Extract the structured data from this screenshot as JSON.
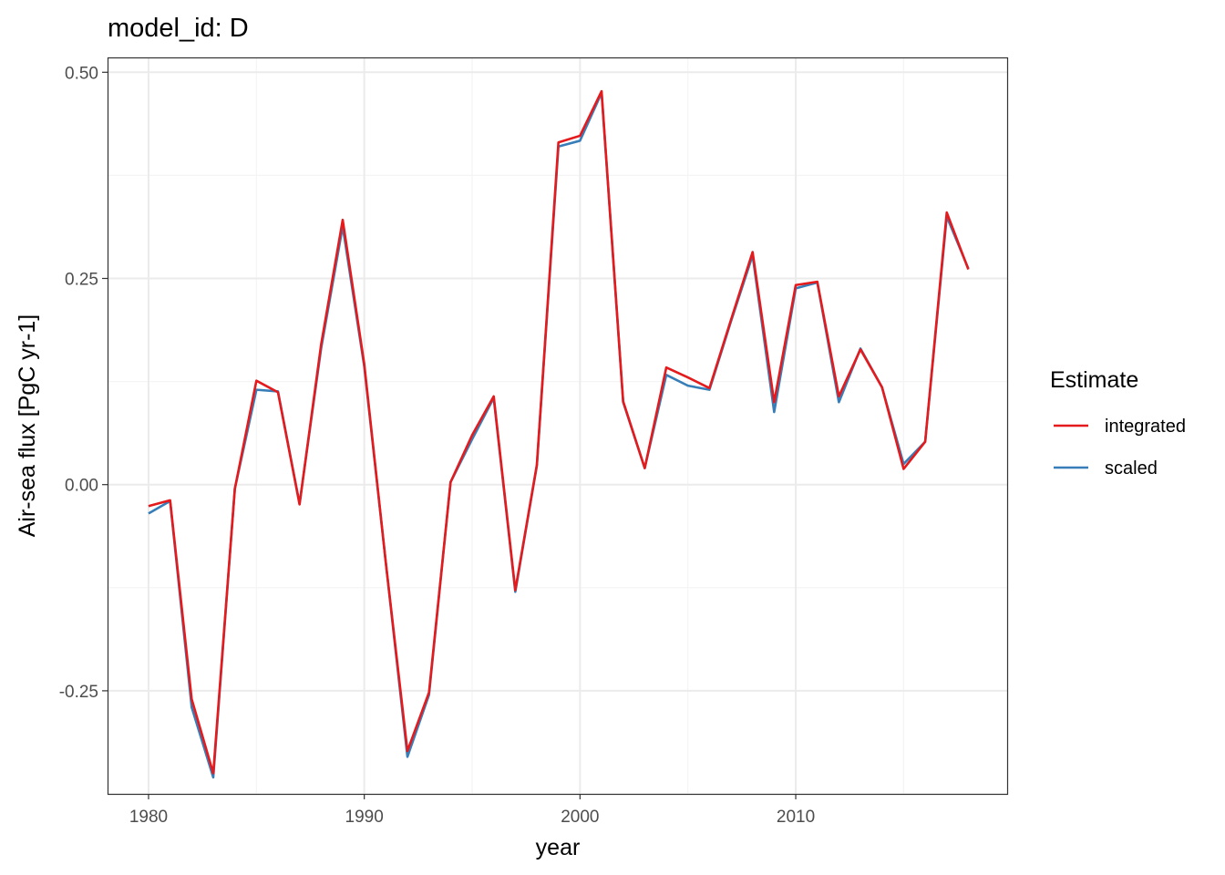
{
  "chart_data": {
    "type": "line",
    "title": "model_id: D",
    "xlabel": "year",
    "ylabel": "Air-sea flux [PgC yr-1]",
    "xlim": [
      1978.1,
      2019.8
    ],
    "ylim": [
      -0.375,
      0.518
    ],
    "x_ticks": [
      1980,
      1990,
      2000,
      2010
    ],
    "x_tick_labels": [
      "1980",
      "1990",
      "2000",
      "2010"
    ],
    "y_ticks": [
      0.5,
      0.25,
      0.0,
      -0.25
    ],
    "y_tick_labels": [
      "0.50",
      "0.25",
      "0.00",
      "-0.25"
    ],
    "grid": true,
    "legend": {
      "title": "Estimate",
      "position": "right",
      "entries": [
        "integrated",
        "scaled"
      ]
    },
    "x": [
      1980,
      1981,
      1982,
      1983,
      1984,
      1985,
      1986,
      1987,
      1988,
      1989,
      1990,
      1991,
      1992,
      1993,
      1994,
      1995,
      1996,
      1997,
      1998,
      1999,
      2000,
      2001,
      2002,
      2003,
      2004,
      2005,
      2006,
      2007,
      2008,
      2009,
      2010,
      2011,
      2012,
      2013,
      2014,
      2015,
      2016,
      2017,
      2018
    ],
    "series": [
      {
        "name": "scaled",
        "color": "#377eb8",
        "values": [
          -0.035,
          -0.02,
          -0.27,
          -0.355,
          -0.005,
          0.115,
          0.113,
          -0.023,
          0.165,
          0.313,
          0.143,
          -0.095,
          -0.33,
          -0.255,
          0.003,
          0.055,
          0.105,
          -0.13,
          0.023,
          0.41,
          0.417,
          0.475,
          0.1,
          0.02,
          0.133,
          0.12,
          0.115,
          0.198,
          0.278,
          0.088,
          0.238,
          0.245,
          0.1,
          0.165,
          0.118,
          0.025,
          0.052,
          0.325,
          0.262
        ]
      },
      {
        "name": "integrated",
        "color": "#e41a1c",
        "values": [
          -0.026,
          -0.019,
          -0.26,
          -0.35,
          -0.005,
          0.126,
          0.112,
          -0.024,
          0.17,
          0.321,
          0.146,
          -0.095,
          -0.323,
          -0.252,
          0.003,
          0.06,
          0.107,
          -0.128,
          0.024,
          0.415,
          0.423,
          0.477,
          0.101,
          0.02,
          0.142,
          0.13,
          0.117,
          0.2,
          0.282,
          0.1,
          0.242,
          0.246,
          0.107,
          0.164,
          0.118,
          0.019,
          0.052,
          0.33,
          0.261
        ]
      }
    ]
  }
}
